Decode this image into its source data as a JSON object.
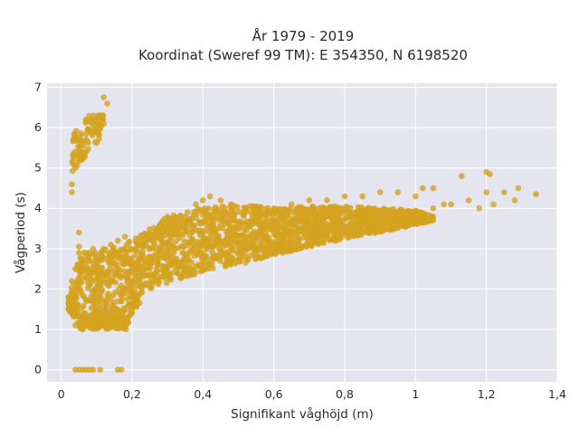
{
  "chart_data": {
    "type": "scatter",
    "title": "År 1979 - 2019",
    "subtitle": "Koordinat (Sweref 99 TM): E 354350, N 6198520",
    "xlabel": "Signifikant våghöjd (m)",
    "ylabel": "Vågperiod (s)",
    "xlim": [
      -0.04,
      1.4
    ],
    "ylim": [
      -0.3,
      7.1
    ],
    "x_ticks": [
      0,
      0.2,
      0.4,
      0.6,
      0.8,
      1,
      1.2,
      1.4
    ],
    "x_tick_labels": [
      "0",
      "0,2",
      "0,4",
      "0,6",
      "0,8",
      "1",
      "1,2",
      "1,4"
    ],
    "y_ticks": [
      0,
      1,
      2,
      3,
      4,
      5,
      6,
      7
    ],
    "y_tick_labels": [
      "0",
      "1",
      "2",
      "3",
      "4",
      "5",
      "6",
      "7"
    ],
    "grid": true,
    "background": "#e5e5ef",
    "marker_color": "#d4a21f",
    "series": [
      {
        "points": [
          [
            0.04,
            0.0
          ],
          [
            0.05,
            0.0
          ],
          [
            0.06,
            0.0
          ],
          [
            0.07,
            0.0
          ],
          [
            0.08,
            0.0
          ],
          [
            0.09,
            0.0
          ],
          [
            0.11,
            0.0
          ],
          [
            0.16,
            0.0
          ],
          [
            0.17,
            0.0
          ],
          [
            0.02,
            1.5
          ],
          [
            0.03,
            1.4
          ],
          [
            0.04,
            1.1
          ],
          [
            0.05,
            1.3
          ],
          [
            0.06,
            1.0
          ],
          [
            0.07,
            1.2
          ],
          [
            0.08,
            1.05
          ],
          [
            0.1,
            1.1
          ],
          [
            0.12,
            1.1
          ],
          [
            0.14,
            1.2
          ],
          [
            0.16,
            1.25
          ],
          [
            0.18,
            1.2
          ],
          [
            0.19,
            1.3
          ],
          [
            0.02,
            1.8
          ],
          [
            0.03,
            2.2
          ],
          [
            0.04,
            2.5
          ],
          [
            0.05,
            2.9
          ],
          [
            0.05,
            3.05
          ],
          [
            0.06,
            2.7
          ],
          [
            0.07,
            2.3
          ],
          [
            0.08,
            2.9
          ],
          [
            0.09,
            3.0
          ],
          [
            0.1,
            2.6
          ],
          [
            0.12,
            3.0
          ],
          [
            0.14,
            3.1
          ],
          [
            0.16,
            3.2
          ],
          [
            0.18,
            3.3
          ],
          [
            0.05,
            3.4
          ],
          [
            0.03,
            4.6
          ],
          [
            0.03,
            4.4
          ],
          [
            0.04,
            5.0
          ],
          [
            0.05,
            5.2
          ],
          [
            0.06,
            5.4
          ],
          [
            0.07,
            5.7
          ],
          [
            0.08,
            5.9
          ],
          [
            0.09,
            6.0
          ],
          [
            0.1,
            6.1
          ],
          [
            0.11,
            6.2
          ],
          [
            0.12,
            6.75
          ],
          [
            0.13,
            6.6
          ],
          [
            0.12,
            6.1
          ],
          [
            0.07,
            6.2
          ],
          [
            0.2,
            2.2
          ],
          [
            0.22,
            2.6
          ],
          [
            0.25,
            2.7
          ],
          [
            0.28,
            3.0
          ],
          [
            0.3,
            3.4
          ],
          [
            0.32,
            3.6
          ],
          [
            0.35,
            3.8
          ],
          [
            0.38,
            4.1
          ],
          [
            0.4,
            4.2
          ],
          [
            0.42,
            4.3
          ],
          [
            0.45,
            4.2
          ],
          [
            0.48,
            4.1
          ],
          [
            0.3,
            2.5
          ],
          [
            0.35,
            2.6
          ],
          [
            0.4,
            2.7
          ],
          [
            0.45,
            2.8
          ],
          [
            0.5,
            2.9
          ],
          [
            0.55,
            3.0
          ],
          [
            0.6,
            3.1
          ],
          [
            0.65,
            3.2
          ],
          [
            0.7,
            3.3
          ],
          [
            0.75,
            3.4
          ],
          [
            0.8,
            3.5
          ],
          [
            0.85,
            3.6
          ],
          [
            0.9,
            3.7
          ],
          [
            0.95,
            3.8
          ],
          [
            0.5,
            3.6
          ],
          [
            0.55,
            3.8
          ],
          [
            0.6,
            4.0
          ],
          [
            0.65,
            4.1
          ],
          [
            0.7,
            4.2
          ],
          [
            0.75,
            4.2
          ],
          [
            0.8,
            4.3
          ],
          [
            0.85,
            4.3
          ],
          [
            0.9,
            4.4
          ],
          [
            0.95,
            4.4
          ],
          [
            1.0,
            4.3
          ],
          [
            1.02,
            4.5
          ],
          [
            1.05,
            4.5
          ],
          [
            1.0,
            3.9
          ],
          [
            1.05,
            4.0
          ],
          [
            1.08,
            4.1
          ],
          [
            1.1,
            4.1
          ],
          [
            1.13,
            4.8
          ],
          [
            1.15,
            4.2
          ],
          [
            1.18,
            4.0
          ],
          [
            1.2,
            4.9
          ],
          [
            1.21,
            4.85
          ],
          [
            1.2,
            4.4
          ],
          [
            1.22,
            4.1
          ],
          [
            1.25,
            4.4
          ],
          [
            1.28,
            4.2
          ],
          [
            1.29,
            4.5
          ],
          [
            1.34,
            4.35
          ]
        ]
      }
    ]
  }
}
